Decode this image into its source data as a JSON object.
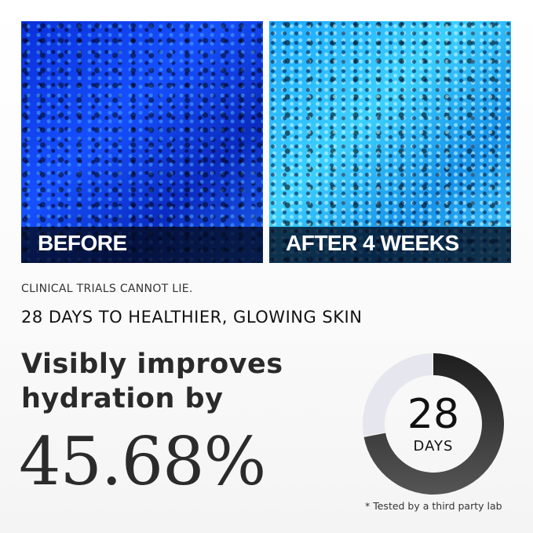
{
  "photos": [
    {
      "label": "BEFORE"
    },
    {
      "label": "AFTER 4 WEEKS"
    }
  ],
  "tagline": "CLINICAL TRIALS CANNOT LIE.",
  "subheading": "28 DAYS TO HEALTHIER, GLOWING SKIN",
  "headline_line1": "Visibly improves",
  "headline_line2": "hydration by",
  "stat": "45.68%",
  "donut": {
    "number": "28",
    "unit": "DAYS",
    "filled_fraction": 0.72,
    "colors": {
      "filled": "#2a2a2a",
      "empty": "#e6e7ee"
    }
  },
  "footnote": "* Tested by a third party lab"
}
